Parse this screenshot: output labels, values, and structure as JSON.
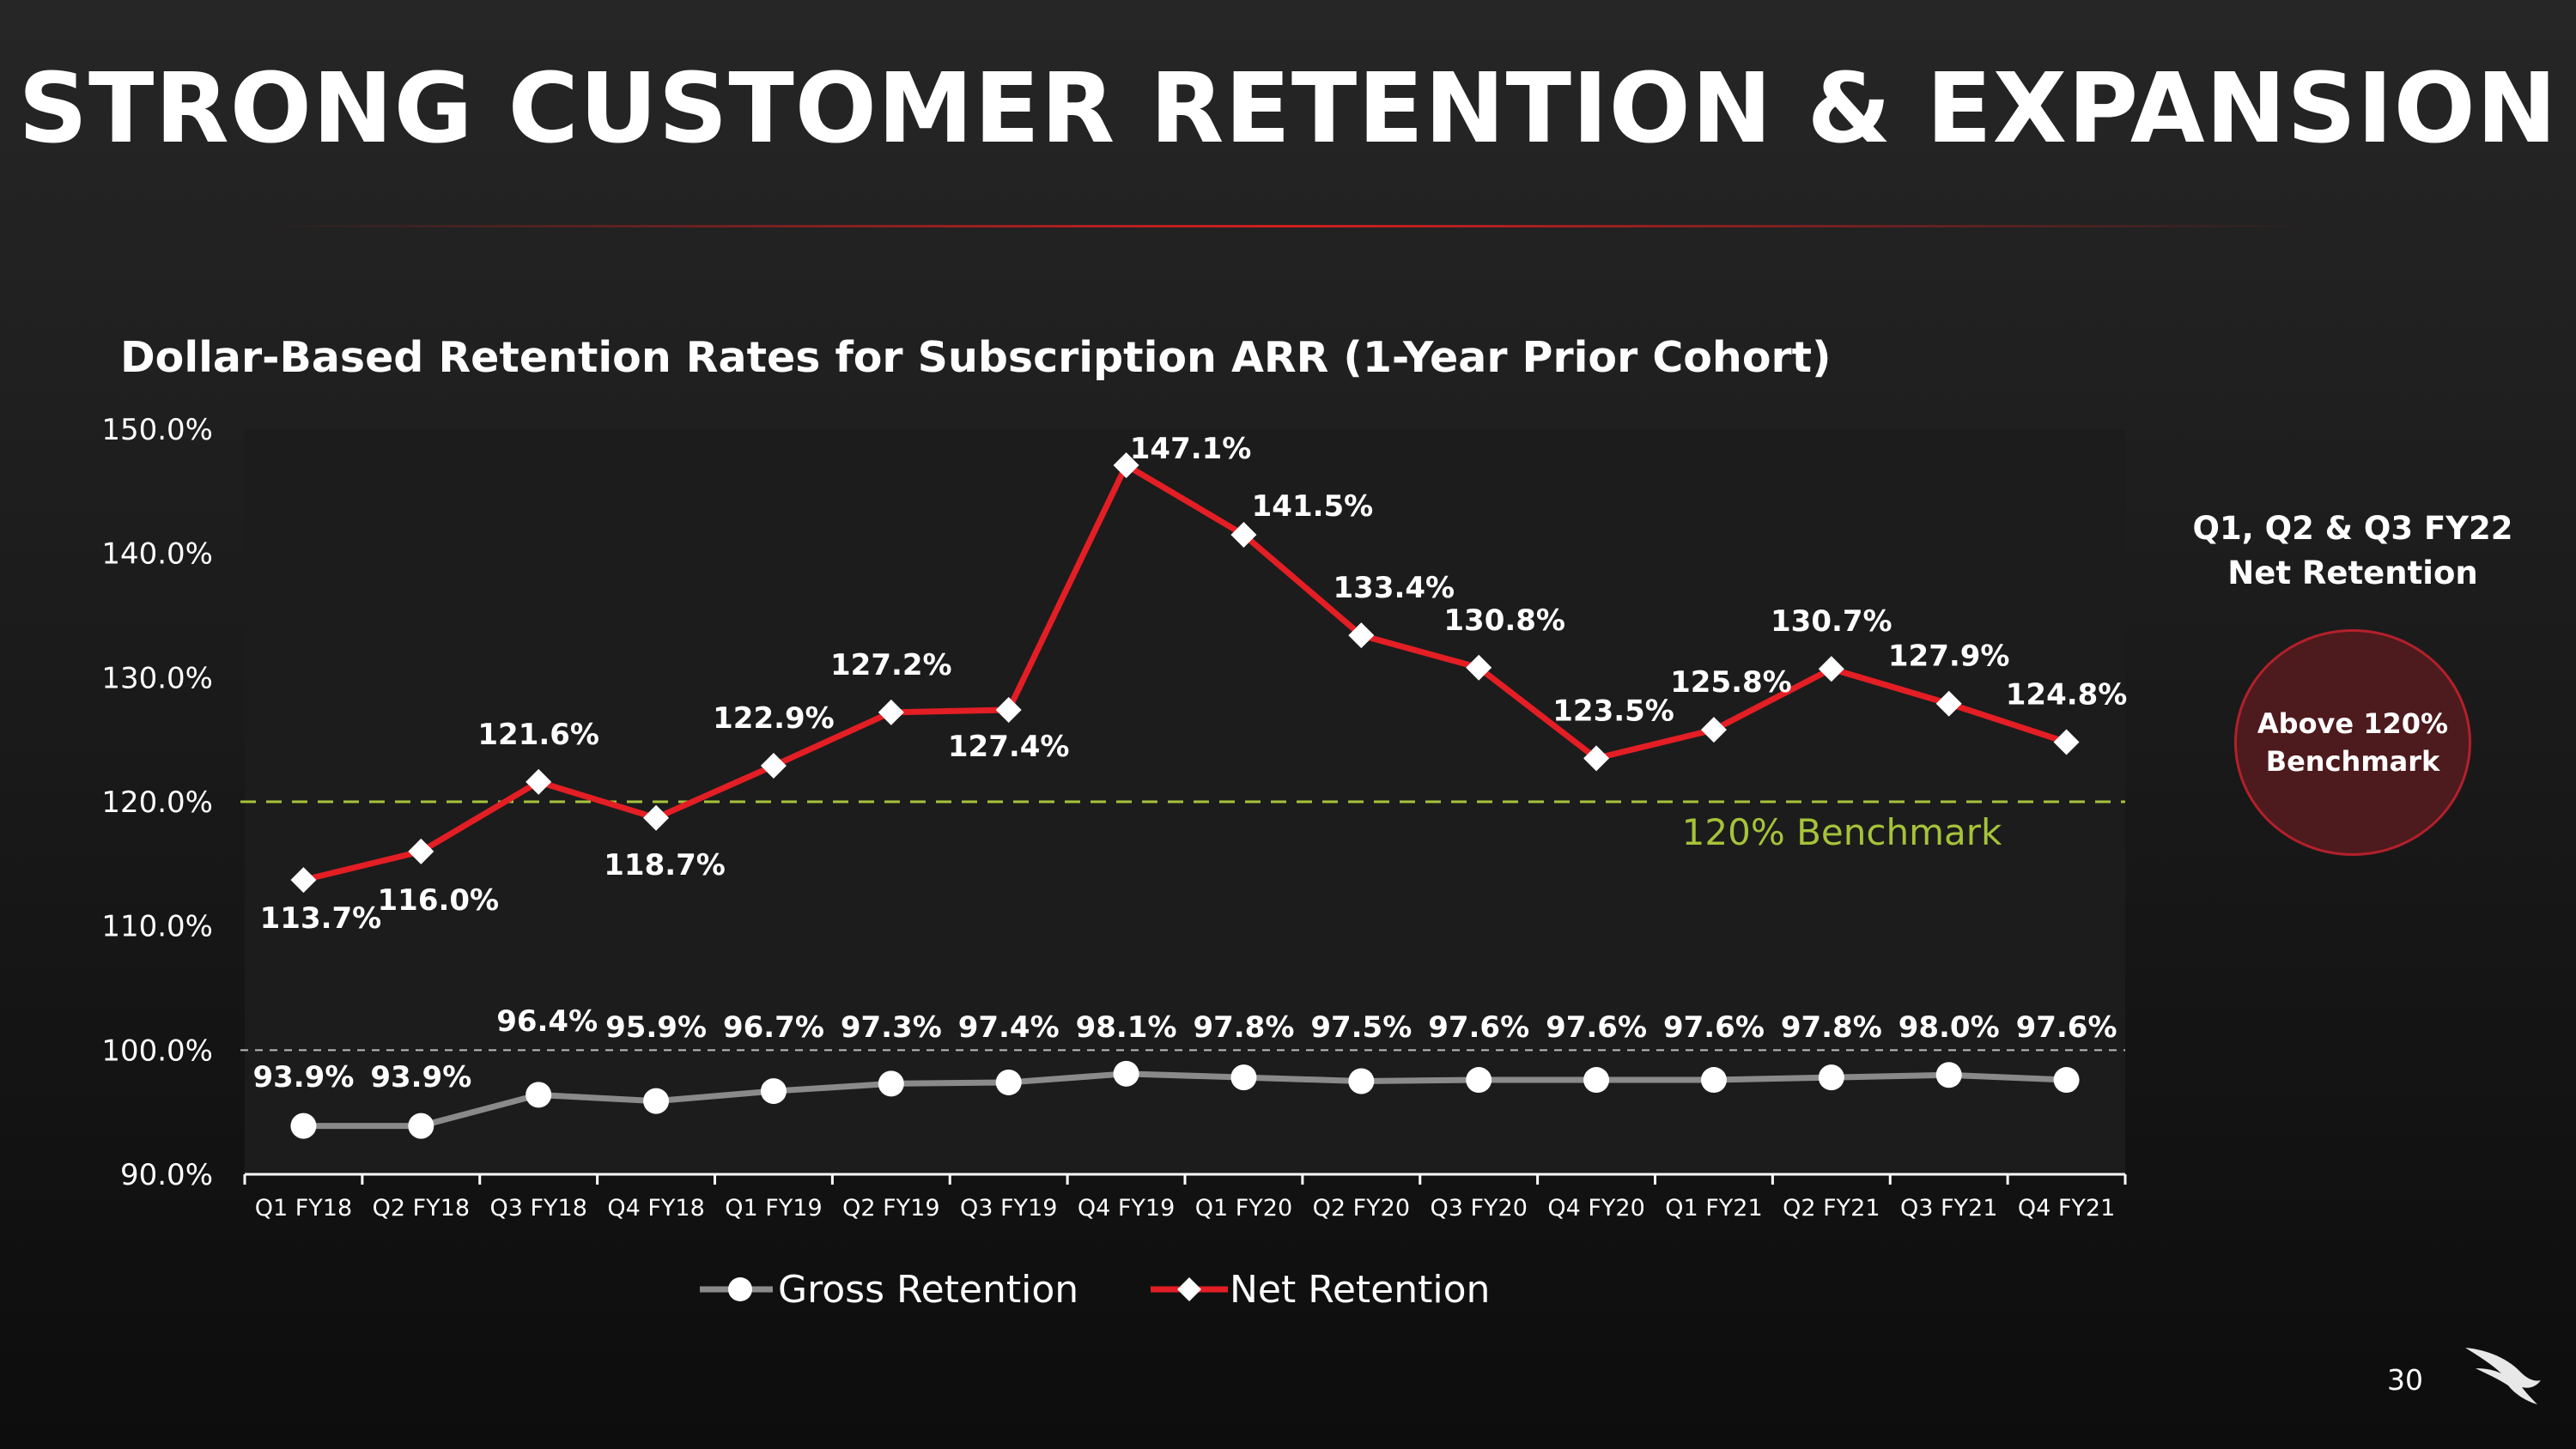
{
  "slide": {
    "title": "STRONG CUSTOMER RETENTION & EXPANSION",
    "page_number": "30"
  },
  "callout": {
    "title": "Q1, Q2 & Q3 FY22\nNet Retention",
    "circle_text": "Above 120%\nBenchmark"
  },
  "colors": {
    "net": "#e31e24",
    "gross": "#8a8a8a",
    "benchmark": "#a6c33a",
    "plot_bg": "#1c1c1c"
  },
  "chart_data": {
    "type": "line",
    "title": "Dollar-Based Retention Rates for Subscription ARR (1-Year Prior Cohort)",
    "xlabel": "",
    "ylabel": "",
    "ylim": [
      90,
      150
    ],
    "y_ticks": [
      "90.0%",
      "100.0%",
      "110.0%",
      "120.0%",
      "130.0%",
      "140.0%",
      "150.0%"
    ],
    "categories": [
      "Q1 FY18",
      "Q2 FY18",
      "Q3 FY18",
      "Q4 FY18",
      "Q1 FY19",
      "Q2 FY19",
      "Q3 FY19",
      "Q4 FY19",
      "Q1 FY20",
      "Q2 FY20",
      "Q3 FY20",
      "Q4 FY20",
      "Q1 FY21",
      "Q2 FY21",
      "Q3 FY21",
      "Q4 FY21"
    ],
    "series": [
      {
        "name": "Gross Retention",
        "values": [
          93.9,
          93.9,
          96.4,
          95.9,
          96.7,
          97.3,
          97.4,
          98.1,
          97.8,
          97.5,
          97.6,
          97.6,
          97.6,
          97.8,
          98.0,
          97.6
        ],
        "labels": [
          "93.9%",
          "93.9%",
          "96.4%",
          "95.9%",
          "96.7%",
          "97.3%",
          "97.4%",
          "98.1%",
          "97.8%",
          "97.5%",
          "97.6%",
          "97.6%",
          "97.6%",
          "97.8%",
          "98.0%",
          "97.6%"
        ]
      },
      {
        "name": "Net Retention",
        "values": [
          113.7,
          116.0,
          121.6,
          118.7,
          122.9,
          127.2,
          127.4,
          147.1,
          141.5,
          133.4,
          130.8,
          123.5,
          125.8,
          130.7,
          127.9,
          124.8
        ],
        "labels": [
          "113.7%",
          "116.0%",
          "121.6%",
          "118.7%",
          "122.9%",
          "127.2%",
          "127.4%",
          "147.1%",
          "141.5%",
          "133.4%",
          "130.8%",
          "123.5%",
          "125.8%",
          "130.7%",
          "127.9%",
          "124.8%"
        ]
      }
    ],
    "reference_lines": [
      {
        "value": 120,
        "label": "120% Benchmark"
      },
      {
        "value": 100,
        "label": ""
      }
    ],
    "legend": "bottom-center",
    "grid": false
  }
}
